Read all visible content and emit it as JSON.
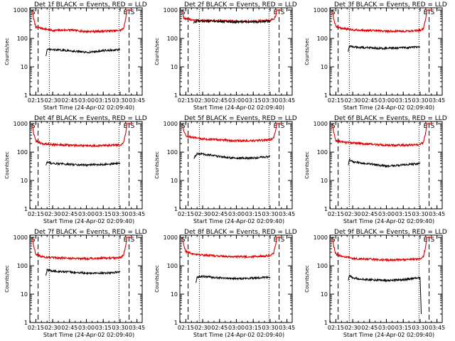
{
  "colors": {
    "events": "#000000",
    "lld": "#e00000",
    "axes": "#000000"
  },
  "common": {
    "ylabel": "Counts/sec",
    "xlabel": "Start Time (24-Apr-02 02:09:40)",
    "x_ticks": [
      "02:15",
      "02:30",
      "02:45",
      "03:00",
      "03:15",
      "03:30",
      "03:45"
    ],
    "y_ticks": [
      "1",
      "10",
      "100",
      "1000"
    ],
    "y_scale": "log",
    "ylim": [
      1,
      1200
    ],
    "xlim": [
      "02:09:40",
      "03:49:40"
    ],
    "markers": {
      "S": "S",
      "E": "E"
    },
    "dashed_lines": [
      "02:17",
      "03:38"
    ],
    "dotted_lines": [
      "02:27",
      "03:29"
    ]
  },
  "chart_data": [
    {
      "type": "line",
      "title": "Det 1f BLACK = Events, RED = LLD",
      "series": [
        {
          "color": "#e00000",
          "x": [
            "02:12",
            "02:13",
            "02:15",
            "02:20",
            "02:30",
            "02:45",
            "03:00",
            "03:15",
            "03:30",
            "03:33",
            "03:35",
            "03:36",
            "03:40"
          ],
          "y": [
            1000,
            500,
            250,
            230,
            190,
            200,
            175,
            180,
            190,
            220,
            500,
            1000,
            1000
          ]
        },
        {
          "color": "#000000",
          "x": [
            "02:24",
            "02:25",
            "02:30",
            "02:45",
            "03:00",
            "03:15",
            "03:30"
          ],
          "y": [
            25,
            40,
            40,
            37,
            32,
            37,
            40
          ]
        }
      ]
    },
    {
      "type": "line",
      "title": "Det 2f BLACK = Events, RED = LLD",
      "series": [
        {
          "color": "#e00000",
          "x": [
            "02:12",
            "02:13",
            "02:15",
            "02:20",
            "02:30",
            "02:45",
            "03:00",
            "03:15",
            "03:30",
            "03:33",
            "03:35",
            "03:36",
            "03:40"
          ],
          "y": [
            1000,
            550,
            480,
            460,
            420,
            420,
            400,
            400,
            430,
            480,
            600,
            1000,
            1000
          ]
        },
        {
          "color": "#000000",
          "x": [
            "02:22",
            "02:25",
            "02:30",
            "02:45",
            "03:00",
            "03:15",
            "03:30"
          ],
          "y": [
            350,
            420,
            410,
            400,
            380,
            380,
            410
          ]
        }
      ]
    },
    {
      "type": "line",
      "title": "Det 3f BLACK = Events, RED = LLD",
      "series": [
        {
          "color": "#e00000",
          "x": [
            "02:12",
            "02:13",
            "02:15",
            "02:20",
            "02:30",
            "02:45",
            "03:00",
            "03:15",
            "03:30",
            "03:33",
            "03:35",
            "03:36",
            "03:40"
          ],
          "y": [
            1000,
            500,
            260,
            230,
            200,
            190,
            180,
            180,
            190,
            230,
            500,
            1000,
            1000
          ]
        },
        {
          "color": "#000000",
          "x": [
            "02:26",
            "02:27",
            "02:30",
            "02:45",
            "03:00",
            "03:15",
            "03:30"
          ],
          "y": [
            35,
            55,
            50,
            47,
            45,
            47,
            50
          ]
        }
      ]
    },
    {
      "type": "line",
      "title": "Det 4f BLACK = Events, RED = LLD",
      "series": [
        {
          "color": "#e00000",
          "x": [
            "02:12",
            "02:13",
            "02:15",
            "02:20",
            "02:30",
            "02:45",
            "03:00",
            "03:15",
            "03:30",
            "03:33",
            "03:35",
            "03:36",
            "03:40"
          ],
          "y": [
            1000,
            450,
            250,
            200,
            185,
            175,
            165,
            170,
            180,
            210,
            450,
            1000,
            1000
          ]
        },
        {
          "color": "#000000",
          "x": [
            "02:24",
            "02:25",
            "02:30",
            "02:45",
            "03:00",
            "03:15",
            "03:30"
          ],
          "y": [
            35,
            45,
            40,
            37,
            35,
            37,
            40
          ]
        }
      ]
    },
    {
      "type": "line",
      "title": "Det 5f BLACK = Events, RED = LLD",
      "series": [
        {
          "color": "#e00000",
          "x": [
            "02:12",
            "02:13",
            "02:15",
            "02:20",
            "02:30",
            "02:45",
            "03:00",
            "03:15",
            "03:30",
            "03:33",
            "03:35",
            "03:36",
            "03:40"
          ],
          "y": [
            1000,
            600,
            380,
            330,
            290,
            270,
            250,
            250,
            270,
            320,
            600,
            1000,
            1000
          ]
        },
        {
          "color": "#000000",
          "x": [
            "02:22",
            "02:25",
            "02:30",
            "02:45",
            "03:00",
            "03:15",
            "03:30"
          ],
          "y": [
            60,
            90,
            85,
            70,
            60,
            62,
            70
          ]
        }
      ]
    },
    {
      "type": "line",
      "title": "Det 6f BLACK = Events, RED = LLD",
      "series": [
        {
          "color": "#e00000",
          "x": [
            "02:12",
            "02:13",
            "02:15",
            "02:20",
            "02:30",
            "02:45",
            "03:00",
            "03:15",
            "03:30",
            "03:33",
            "03:35",
            "03:36",
            "03:40"
          ],
          "y": [
            1000,
            500,
            250,
            230,
            210,
            190,
            175,
            175,
            185,
            220,
            500,
            1000,
            1000
          ]
        },
        {
          "color": "#000000",
          "x": [
            "02:26",
            "02:27",
            "02:30",
            "02:45",
            "03:00",
            "03:15",
            "03:30"
          ],
          "y": [
            35,
            55,
            45,
            38,
            32,
            35,
            40
          ]
        }
      ]
    },
    {
      "type": "line",
      "title": "Det 7f BLACK = Events, RED = LLD",
      "series": [
        {
          "color": "#e00000",
          "x": [
            "02:12",
            "02:13",
            "02:15",
            "02:20",
            "02:30",
            "02:45",
            "03:00",
            "03:15",
            "03:30",
            "03:33",
            "03:35",
            "03:36",
            "03:40"
          ],
          "y": [
            1000,
            500,
            260,
            210,
            190,
            185,
            180,
            185,
            190,
            230,
            500,
            1000,
            1000
          ]
        },
        {
          "color": "#000000",
          "x": [
            "02:24",
            "02:25",
            "02:30",
            "02:45",
            "03:00",
            "03:15",
            "03:30"
          ],
          "y": [
            45,
            70,
            65,
            60,
            55,
            55,
            60
          ]
        }
      ]
    },
    {
      "type": "line",
      "title": "Det 8f BLACK = Events, RED = LLD",
      "series": [
        {
          "color": "#e00000",
          "x": [
            "02:12",
            "02:13",
            "02:15",
            "02:20",
            "02:30",
            "02:45",
            "03:00",
            "03:15",
            "03:30",
            "03:33",
            "03:35",
            "03:36",
            "03:40"
          ],
          "y": [
            1000,
            550,
            320,
            270,
            240,
            220,
            210,
            210,
            230,
            270,
            550,
            1000,
            1000
          ]
        },
        {
          "color": "#000000",
          "x": [
            "02:24",
            "02:25",
            "02:30",
            "02:45",
            "03:00",
            "03:15",
            "03:30"
          ],
          "y": [
            25,
            40,
            42,
            38,
            35,
            37,
            40
          ]
        }
      ]
    },
    {
      "type": "line",
      "title": "Det 9f BLACK = Events, RED = LLD",
      "series": [
        {
          "color": "#e00000",
          "x": [
            "02:12",
            "02:13",
            "02:15",
            "02:20",
            "02:30",
            "02:45",
            "03:00",
            "03:15",
            "03:30",
            "03:33",
            "03:35",
            "03:36",
            "03:40"
          ],
          "y": [
            1000,
            500,
            250,
            220,
            180,
            170,
            160,
            165,
            170,
            210,
            500,
            1000,
            1000
          ]
        },
        {
          "color": "#000000",
          "x": [
            "02:26",
            "02:27",
            "02:30",
            "02:45",
            "03:00",
            "03:15",
            "03:30",
            "03:31"
          ],
          "y": [
            30,
            45,
            37,
            32,
            30,
            32,
            38,
            2
          ]
        }
      ]
    }
  ]
}
